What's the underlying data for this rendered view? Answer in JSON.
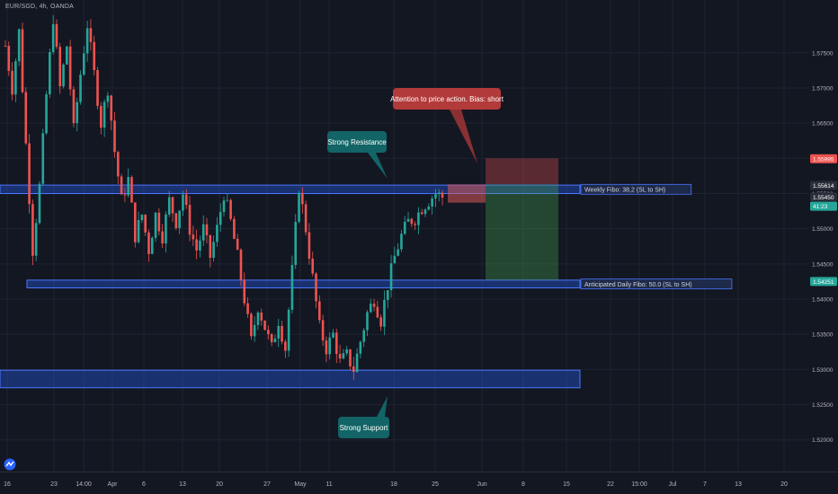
{
  "header": {
    "symbol_label": "EUR/SGD, 4h, OANDA"
  },
  "colors": {
    "background": "#131722",
    "grid": "#1f2330",
    "candle_up": "#26a69a",
    "candle_down": "#ef5350",
    "zone_fill": "#2962ff",
    "zone_border": "#4a77ff",
    "teal_callout": "#126466",
    "red_callout": "#b33a3a",
    "axis_text": "#b2b5be"
  },
  "chart_data": {
    "type": "candlestick",
    "title": "",
    "xlabel": "",
    "ylabel": "",
    "ylim": [
      1.5155,
      1.5825
    ],
    "y_ticks": [
      1.52,
      1.525,
      1.53,
      1.535,
      1.54,
      1.545,
      1.55,
      1.555,
      1.56,
      1.565,
      1.57,
      1.575
    ],
    "y_tick_labels": [
      "1.52000",
      "1.52500",
      "1.53000",
      "1.53500",
      "1.54000",
      "1.54500",
      "1.55000",
      "1.55500",
      "1.56000",
      "1.56500",
      "1.57000",
      "1.57500"
    ],
    "x_tick_labels": [
      "16",
      "23",
      "14:00",
      "Apr",
      "6",
      "13",
      "20",
      "27",
      "May",
      "11",
      "18",
      "25",
      "Jun",
      "8",
      "15",
      "22",
      "15:00",
      "Jul",
      "7",
      "13",
      "20"
    ],
    "price_badges": [
      {
        "label": "1.55995",
        "value": 1.55995,
        "color": "#ef5350"
      },
      {
        "label": "1.55614",
        "value": 1.55614,
        "color": "#2a2e39"
      },
      {
        "label": "1.55450",
        "value": 1.5545,
        "color": "#2a2e39"
      },
      {
        "label": "41:23",
        "value": 1.5532,
        "color": "#26a69a"
      },
      {
        "label": "1.54251",
        "value": 1.54251,
        "color": "#26a69a"
      }
    ],
    "zones": [
      {
        "name": "weekly-fibo-zone",
        "label": "Weekly Fibo: 38,2 (SL to SH)",
        "high": 1.5562,
        "low": 1.555
      },
      {
        "name": "daily-fibo-zone",
        "label": "Anticipated Daily Fibo: 50.0 (SL to SH)",
        "high": 1.5427,
        "low": 1.5416
      },
      {
        "name": "support-zone",
        "label": "",
        "high": 1.5299,
        "low": 1.5274
      }
    ],
    "trade_setup": {
      "entry_high": 1.5563,
      "entry_low": 1.5537,
      "stop_high": 1.56,
      "stop_low": 1.5563,
      "target_high": 1.5563,
      "target_low": 1.5427
    },
    "price_path": [
      [
        0,
        1.576
      ],
      [
        2,
        1.57
      ],
      [
        4,
        1.578
      ],
      [
        6,
        1.562
      ],
      [
        8,
        1.547
      ],
      [
        10,
        1.556
      ],
      [
        12,
        1.569
      ],
      [
        14,
        1.58
      ],
      [
        16,
        1.57
      ],
      [
        18,
        1.576
      ],
      [
        20,
        1.564
      ],
      [
        22,
        1.572
      ],
      [
        24,
        1.579
      ],
      [
        26,
        1.572
      ],
      [
        28,
        1.565
      ],
      [
        30,
        1.57
      ],
      [
        32,
        1.561
      ],
      [
        34,
        1.554
      ],
      [
        36,
        1.557
      ],
      [
        38,
        1.549
      ],
      [
        40,
        1.552
      ],
      [
        42,
        1.547
      ],
      [
        44,
        1.552
      ],
      [
        46,
        1.549
      ],
      [
        48,
        1.554
      ],
      [
        50,
        1.551
      ],
      [
        52,
        1.555
      ],
      [
        54,
        1.55
      ],
      [
        56,
        1.547
      ],
      [
        58,
        1.55
      ],
      [
        60,
        1.546
      ],
      [
        62,
        1.55
      ],
      [
        64,
        1.555
      ],
      [
        66,
        1.551
      ],
      [
        68,
        1.546
      ],
      [
        70,
        1.54
      ],
      [
        72,
        1.534
      ],
      [
        74,
        1.539
      ],
      [
        76,
        1.536
      ],
      [
        78,
        1.533
      ],
      [
        80,
        1.537
      ],
      [
        82,
        1.533
      ],
      [
        84,
        1.544
      ],
      [
        86,
        1.556
      ],
      [
        88,
        1.55
      ],
      [
        90,
        1.543
      ],
      [
        92,
        1.536
      ],
      [
        94,
        1.533
      ],
      [
        96,
        1.535
      ],
      [
        98,
        1.531
      ],
      [
        100,
        1.532
      ],
      [
        102,
        1.53
      ],
      [
        104,
        1.534
      ],
      [
        106,
        1.538
      ],
      [
        108,
        1.54
      ],
      [
        110,
        1.537
      ],
      [
        112,
        1.542
      ],
      [
        114,
        1.546
      ],
      [
        116,
        1.549
      ],
      [
        118,
        1.551
      ],
      [
        120,
        1.5515
      ],
      [
        122,
        1.553
      ],
      [
        124,
        1.554
      ],
      [
        126,
        1.555
      ],
      [
        128,
        1.5545
      ]
    ],
    "annotations": [
      {
        "name": "callout-attention",
        "text": "Attention to price action. Bias: short",
        "style": "red"
      },
      {
        "name": "callout-strong-resistance",
        "text": "Strong Resistance",
        "style": "teal"
      },
      {
        "name": "callout-strong-support",
        "text": "Strong Support",
        "style": "teal"
      }
    ]
  }
}
